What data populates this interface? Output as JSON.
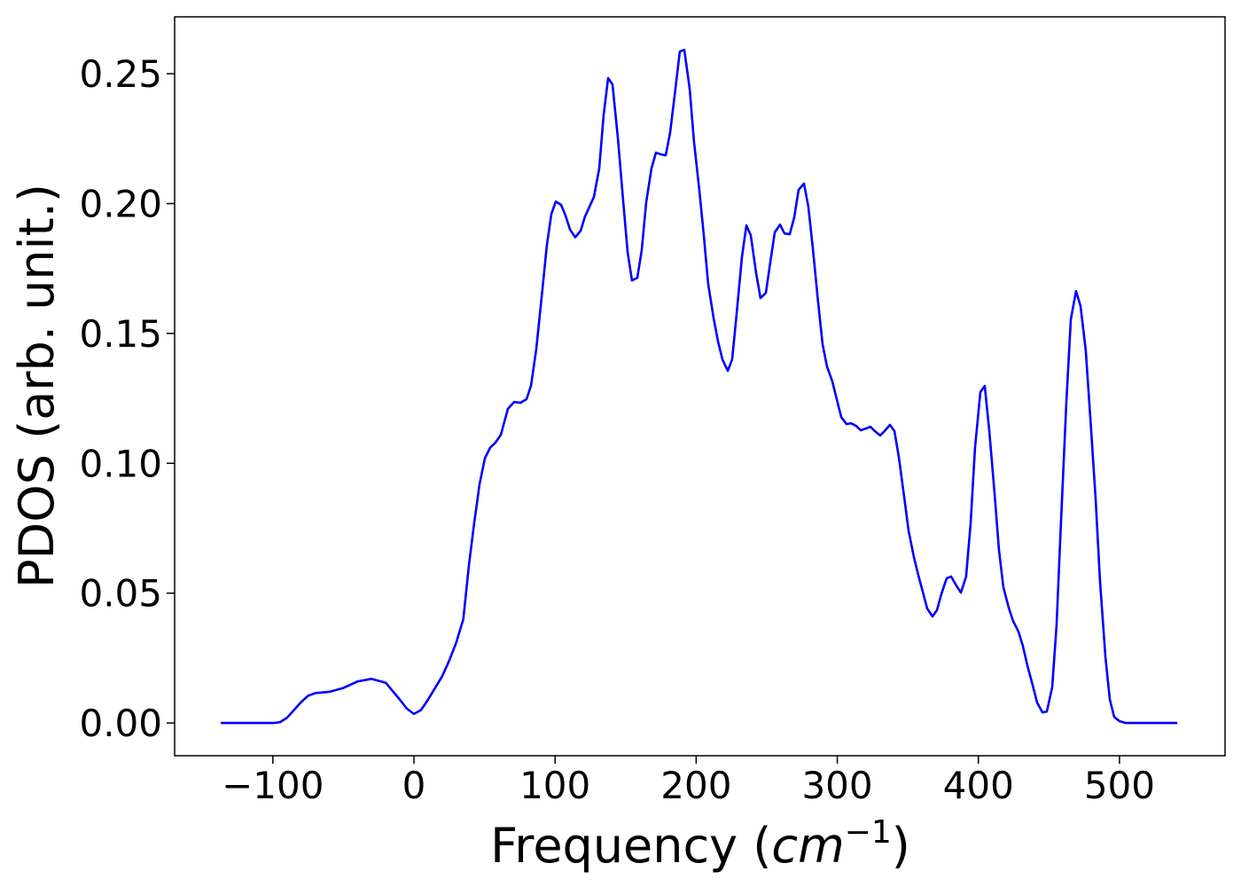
{
  "chart_data": {
    "type": "line",
    "xlabel": [
      "Frequency (",
      "cm",
      "−1",
      ")"
    ],
    "ylabel": "PDOS (arb. unit.)",
    "color": "#0000ff",
    "xlim": [
      -169.6,
      574.8
    ],
    "ylim": [
      -0.0126,
      0.2719
    ],
    "xticks": [
      {
        "value": -100,
        "label": "−100"
      },
      0,
      100,
      200,
      300,
      400,
      500
    ],
    "yticks": [
      {
        "value": 0,
        "label": "0.00"
      },
      0.05,
      {
        "value": 0.1,
        "label": "0.10"
      },
      0.15,
      {
        "value": 0.2,
        "label": "0.20"
      },
      0.25
    ],
    "x": [
      -137,
      -120,
      -100,
      -95,
      -90,
      -85,
      -80,
      -75,
      -70,
      -60,
      -50,
      -40,
      -30,
      -20,
      -10,
      -5,
      0,
      5,
      10,
      15,
      20,
      25,
      30,
      35,
      39,
      42.7,
      46.5,
      50.3,
      54,
      57.8,
      61.6,
      66.6,
      71,
      75.4,
      79.8,
      83,
      86.7,
      90.5,
      94.2,
      97.4,
      100.5,
      104.3,
      107.4,
      110.6,
      114.3,
      118.1,
      121.2,
      127.5,
      131.3,
      134.4,
      137.6,
      140.7,
      144.5,
      148.2,
      151.4,
      154.5,
      158.3,
      161.4,
      164.6,
      168.3,
      171.5,
      175.3,
      178.4,
      181.5,
      185.3,
      188.4,
      191.6,
      195.4,
      198.5,
      202.3,
      205.4,
      208.5,
      212.3,
      215.5,
      218.6,
      222.4,
      225.5,
      228.6,
      232.4,
      235.6,
      238.7,
      242.5,
      245.6,
      249.4,
      252.5,
      255.7,
      259.4,
      262.6,
      266.3,
      269.5,
      272.6,
      276.4,
      279.5,
      282.7,
      286.4,
      289.6,
      292.7,
      296.5,
      299.6,
      302.8,
      306.5,
      309.7,
      313.4,
      316.6,
      320.4,
      323.5,
      326.6,
      330.4,
      333.5,
      337.3,
      340.5,
      343.6,
      347.4,
      350.5,
      354.3,
      357.4,
      360.6,
      363.7,
      367.5,
      370.6,
      373.7,
      377.5,
      380.7,
      384.4,
      387.6,
      391.3,
      394.5,
      397.6,
      401.4,
      404.5,
      407.7,
      411.4,
      414.6,
      417.7,
      421.5,
      424.6,
      428.4,
      431.5,
      434.7,
      438.4,
      441.6,
      445.4,
      448.5,
      452.3,
      455.4,
      458.5,
      462.3,
      465.5,
      469.2,
      472.4,
      476.1,
      479.3,
      483,
      486.2,
      490,
      493.1,
      496.2,
      500,
      504.4,
      541
    ],
    "values": [
      0,
      0,
      0,
      0.0003,
      0.002,
      0.005,
      0.008,
      0.0105,
      0.0115,
      0.012,
      0.0135,
      0.016,
      0.017,
      0.0155,
      0.009,
      0.0055,
      0.0035,
      0.005,
      0.009,
      0.0135,
      0.018,
      0.024,
      0.031,
      0.04,
      0.061,
      0.077,
      0.092,
      0.102,
      0.106,
      0.108,
      0.111,
      0.121,
      0.1236,
      0.1233,
      0.1247,
      0.13,
      0.144,
      0.164,
      0.184,
      0.196,
      0.2008,
      0.1995,
      0.1954,
      0.19,
      0.187,
      0.1895,
      0.195,
      0.2025,
      0.2135,
      0.234,
      0.2483,
      0.2459,
      0.2254,
      0.2015,
      0.1814,
      0.1704,
      0.1714,
      0.182,
      0.2005,
      0.2135,
      0.2196,
      0.2189,
      0.2186,
      0.2271,
      0.2442,
      0.2585,
      0.2592,
      0.2442,
      0.2237,
      0.2049,
      0.1878,
      0.1691,
      0.1561,
      0.1469,
      0.14,
      0.1356,
      0.14,
      0.1571,
      0.1793,
      0.1916,
      0.1878,
      0.1732,
      0.1636,
      0.1656,
      0.1773,
      0.1889,
      0.1919,
      0.1885,
      0.1882,
      0.1947,
      0.2053,
      0.2077,
      0.1988,
      0.1827,
      0.1622,
      0.1458,
      0.1373,
      0.1315,
      0.1247,
      0.1178,
      0.1151,
      0.1154,
      0.1144,
      0.1127,
      0.1134,
      0.1141,
      0.1124,
      0.1107,
      0.1124,
      0.1148,
      0.1124,
      0.1025,
      0.0871,
      0.0741,
      0.0639,
      0.057,
      0.0505,
      0.0441,
      0.041,
      0.0434,
      0.0495,
      0.0557,
      0.0564,
      0.0529,
      0.0502,
      0.0564,
      0.0768,
      0.1059,
      0.1274,
      0.1298,
      0.1127,
      0.0888,
      0.0666,
      0.0523,
      0.0444,
      0.0393,
      0.0352,
      0.0297,
      0.0222,
      0.0147,
      0.0079,
      0.0041,
      0.0044,
      0.0137,
      0.0376,
      0.0768,
      0.123,
      0.1554,
      0.1663,
      0.1605,
      0.1434,
      0.1178,
      0.0871,
      0.0546,
      0.0256,
      0.0092,
      0.0024,
      0.0007,
      0,
      0
    ]
  }
}
